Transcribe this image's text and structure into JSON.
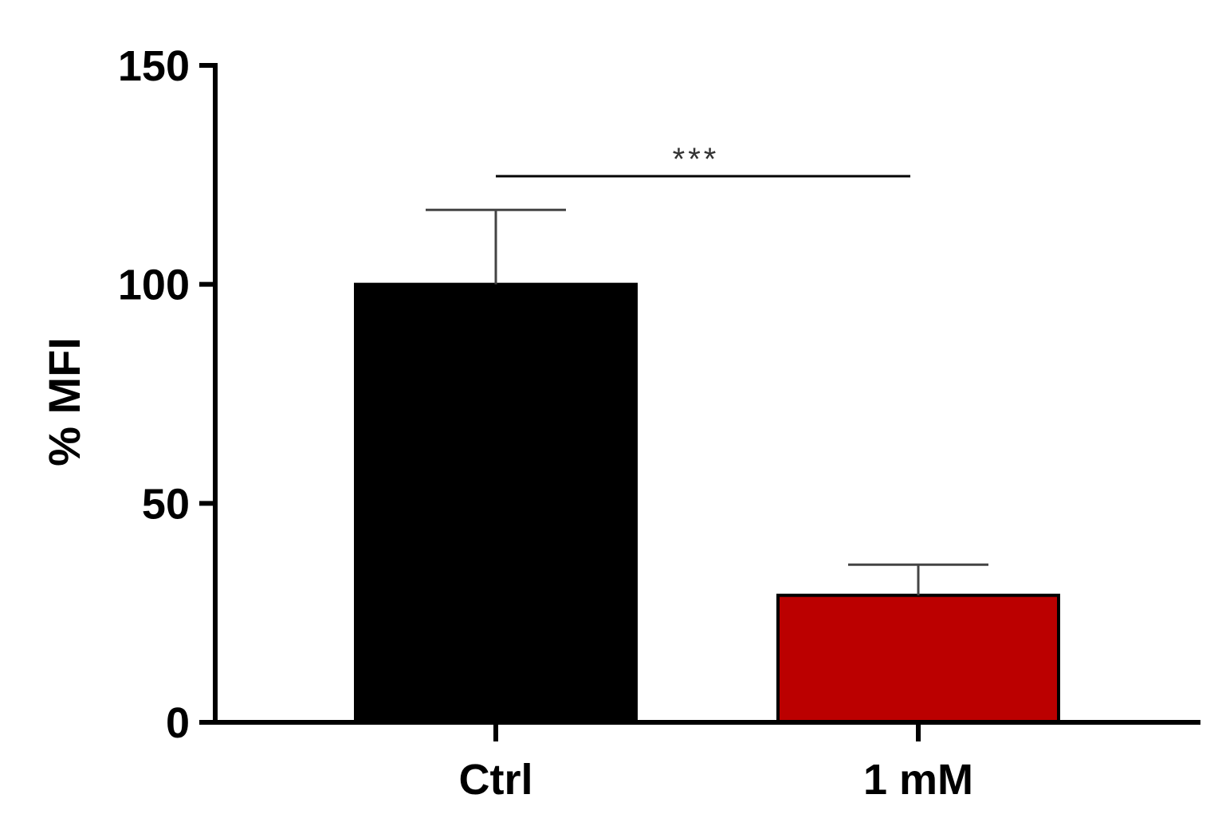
{
  "chart_data": {
    "type": "bar",
    "categories": [
      "Ctrl",
      "1 mM"
    ],
    "values": [
      100,
      29
    ],
    "errors": [
      17,
      7
    ],
    "colors": [
      "#000000",
      "#bb0000"
    ],
    "ylabel": "% MFI",
    "xlabel": "",
    "ylim": [
      0,
      150
    ],
    "yticks": [
      0,
      50,
      100,
      150
    ],
    "grid": false,
    "significance": {
      "from": "Ctrl",
      "to": "1 mM",
      "label": "***"
    }
  }
}
